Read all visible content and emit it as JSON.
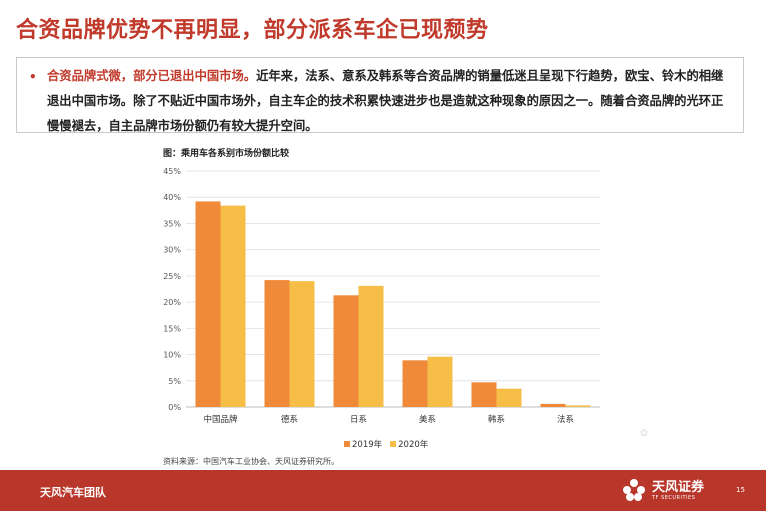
{
  "title": "合资品牌优势不再明显，部分派系车企已现颓势",
  "bullet": {
    "lead": "合资品牌式微，部分已退出中国市场。",
    "text": "近年来，法系、意系及韩系等合资品牌的销量低迷且呈现下行趋势，欧宝、铃木的相继退出中国市场。除了不贴近中国市场外，自主车企的技术积累快速进步也是造就这种现象的原因之一。随着合资品牌的光环正慢慢褪去，自主品牌市场份额仍有较大提升空间。"
  },
  "chart_caption": "图：乘用车各系别市场份额比较",
  "chart_data": {
    "type": "bar",
    "categories": [
      "中国品牌",
      "德系",
      "日系",
      "美系",
      "韩系",
      "法系"
    ],
    "series": [
      {
        "name": "2019年",
        "color": "#ef8a3a",
        "values": [
          39.2,
          24.2,
          21.3,
          8.9,
          4.7,
          0.6
        ]
      },
      {
        "name": "2020年",
        "color": "#f6bd47",
        "values": [
          38.4,
          24.0,
          23.1,
          9.6,
          3.5,
          0.3
        ]
      }
    ],
    "yticks": [
      "0%",
      "5%",
      "10%",
      "15%",
      "20%",
      "25%",
      "30%",
      "35%",
      "40%",
      "45%"
    ],
    "ylim": [
      0,
      45
    ],
    "grid": true,
    "legend": "bottom"
  },
  "source": "资料来源：中国汽车工业协会、天风证券研究所。",
  "footer": {
    "team": "天风汽车团队",
    "logo_name": "天风证券",
    "logo_sub": "TF SECURITIES",
    "page_number": "15",
    "brand_color": "#b8362a"
  }
}
